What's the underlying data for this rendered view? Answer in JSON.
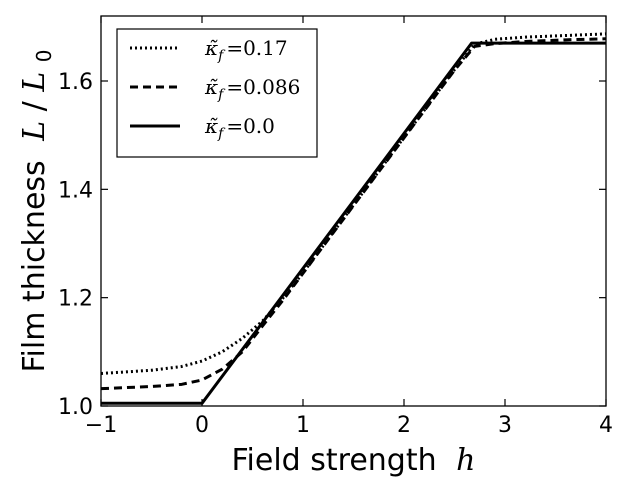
{
  "chart_data": {
    "type": "line",
    "xlabel": "Field strength",
    "xlabel_var": "h",
    "ylabel": "Film thickness",
    "ylabel_var_num": "L",
    "ylabel_var_den": "L",
    "ylabel_var_den_sub": "0",
    "xlim": [
      -1,
      4
    ],
    "ylim": [
      1.0,
      1.72
    ],
    "xticks": [
      -1,
      0,
      1,
      2,
      3,
      4
    ],
    "xtick_labels": [
      "−1",
      "0",
      "1",
      "2",
      "3",
      "4"
    ],
    "yticks": [
      1.0,
      1.2,
      1.4,
      1.6
    ],
    "ytick_labels": [
      "1.0",
      "1.2",
      "1.4",
      "1.6"
    ],
    "grid": false,
    "legend_position": "top-left",
    "series": [
      {
        "name": "κ̃ f = 0.17",
        "legend_symbol": "κ̃",
        "legend_sub": "f",
        "legend_value": "0.17",
        "style": "dotted",
        "color": "#000000",
        "x": [
          -1.0,
          -0.5,
          -0.2,
          0.0,
          0.2,
          0.4,
          0.6,
          0.8,
          1.0,
          1.5,
          2.0,
          2.5,
          2.7,
          2.9,
          3.2,
          3.6,
          4.0
        ],
        "y": [
          1.06,
          1.066,
          1.073,
          1.083,
          1.1,
          1.125,
          1.157,
          1.199,
          1.246,
          1.371,
          1.496,
          1.621,
          1.668,
          1.677,
          1.681,
          1.684,
          1.687
        ]
      },
      {
        "name": "κ̃ f = 0.086",
        "legend_symbol": "κ̃",
        "legend_sub": "f",
        "legend_value": "0.086",
        "style": "dashed",
        "color": "#000000",
        "x": [
          -1.0,
          -0.5,
          -0.2,
          0.0,
          0.2,
          0.4,
          0.6,
          0.8,
          1.0,
          1.5,
          2.0,
          2.5,
          2.7,
          2.9,
          3.2,
          3.6,
          4.0
        ],
        "y": [
          1.032,
          1.036,
          1.04,
          1.048,
          1.068,
          1.1,
          1.148,
          1.195,
          1.245,
          1.37,
          1.495,
          1.62,
          1.664,
          1.669,
          1.673,
          1.676,
          1.678
        ]
      },
      {
        "name": "κ̃ f = 0.0",
        "legend_symbol": "κ̃",
        "legend_sub": "f",
        "legend_value": "0.0",
        "style": "solid",
        "color": "#000000",
        "x": [
          -1.0,
          0.0,
          2.67,
          4.0
        ],
        "y": [
          1.005,
          1.005,
          1.67,
          1.67
        ]
      }
    ]
  }
}
